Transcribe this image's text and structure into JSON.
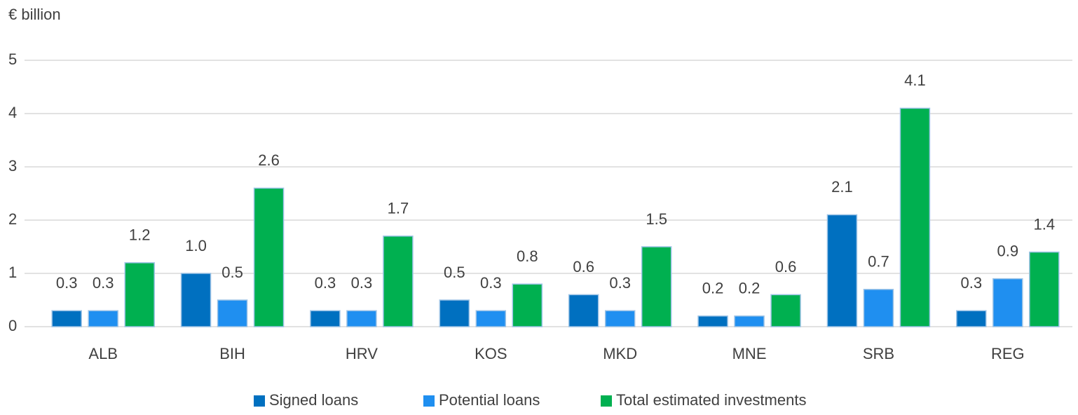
{
  "chart_data": {
    "type": "bar",
    "y_label": "€ billion",
    "categories": [
      "ALB",
      "BIH",
      "HRV",
      "KOS",
      "MKD",
      "MNE",
      "SRB",
      "REG"
    ],
    "series": [
      {
        "name": "Signed loans",
        "color": "#0070c0",
        "values": [
          0.3,
          1.0,
          0.3,
          0.5,
          0.6,
          0.2,
          2.1,
          0.3
        ],
        "value_labels": [
          "0.3",
          "1.0",
          "0.3",
          "0.5",
          "0.6",
          "0.2",
          "2.1",
          "0.3"
        ]
      },
      {
        "name": "Potential loans",
        "color": "#1f8ff0",
        "values": [
          0.3,
          0.5,
          0.3,
          0.3,
          0.3,
          0.2,
          0.7,
          0.9
        ],
        "value_labels": [
          "0.3",
          "0.5",
          "0.3",
          "0.3",
          "0.3",
          "0.2",
          "0.7",
          "0.9"
        ]
      },
      {
        "name": "Total estimated investments",
        "color": "#00b050",
        "values": [
          1.2,
          2.6,
          1.7,
          0.8,
          1.5,
          0.6,
          4.1,
          1.4
        ],
        "value_labels": [
          "1.2",
          "2.6",
          "1.7",
          "0.8",
          "1.5",
          "0.6",
          "4.1",
          "1.4"
        ]
      }
    ],
    "ylim": [
      0,
      5
    ],
    "yticks": [
      0,
      1,
      2,
      3,
      4,
      5
    ],
    "grid": true,
    "legend": "bottom"
  }
}
